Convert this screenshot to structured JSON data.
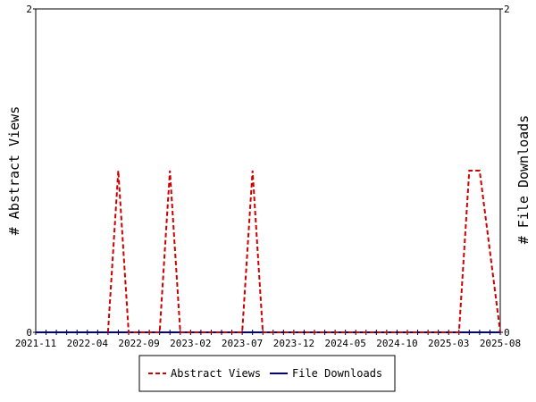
{
  "chart_data": {
    "type": "line",
    "x_tick_labels": [
      "2021-11",
      "2022-04",
      "2022-09",
      "2023-02",
      "2023-07",
      "2023-12",
      "2024-05",
      "2024-10",
      "2025-03",
      "2025-08"
    ],
    "x_range": [
      "2021-11",
      "2025-08"
    ],
    "ylabel_left": "# Abstract Views",
    "ylabel_right": "# File Downloads",
    "ylim": [
      0,
      2
    ],
    "y_ticks_left": [
      "0",
      "2"
    ],
    "y_ticks_right": [
      "0",
      "2"
    ],
    "grid": false,
    "legend_position": "bottom",
    "series": [
      {
        "name": "Abstract Views",
        "color": "#cc0000",
        "style": "dashed",
        "axis": "left",
        "x": [
          "2022-06",
          "2022-07",
          "2022-08",
          "2022-11",
          "2022-12",
          "2023-01",
          "2023-07",
          "2023-08",
          "2023-09",
          "2025-04",
          "2025-05",
          "2025-06",
          "2025-08"
        ],
        "values": [
          0,
          1,
          0,
          0,
          1,
          0,
          0,
          1,
          0,
          0,
          1,
          1,
          0
        ]
      },
      {
        "name": "File Downloads",
        "color": "#00008b",
        "style": "solid",
        "axis": "right",
        "x": [
          "2021-11",
          "2025-08"
        ],
        "values": [
          0,
          0
        ]
      }
    ]
  }
}
